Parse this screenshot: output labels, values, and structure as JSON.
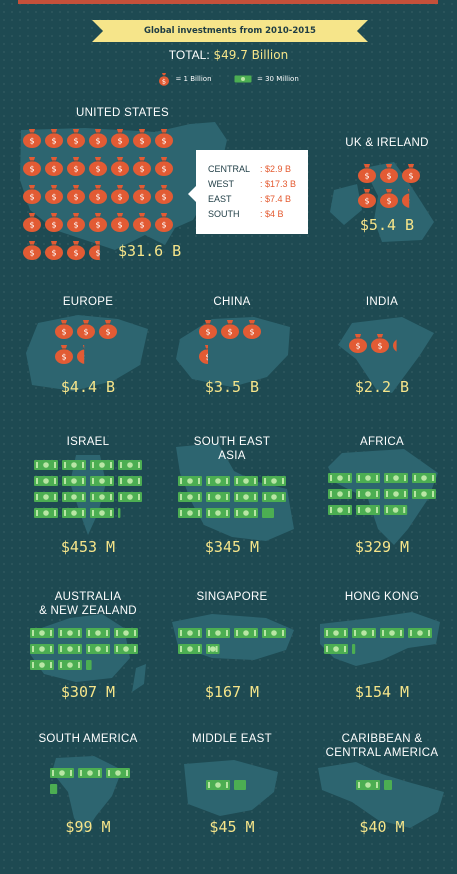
{
  "title": "Global investments from 2010-2015",
  "total": {
    "label": "TOTAL:",
    "value": "$49.7 Billion"
  },
  "legend": {
    "bag_label": "= 1 Billion",
    "bills_label": "= 30 Million"
  },
  "colors": {
    "background": "#1e4a52",
    "map": "#2d6570",
    "bag": "#e25b34",
    "bills": "#4cae52",
    "amount": "#f6e58a",
    "banner": "#f6e58a"
  },
  "us_breakdown": [
    {
      "region": "CENTRAL",
      "amount": ": $2.9 B"
    },
    {
      "region": "WEST",
      "amount": ": $17.3 B"
    },
    {
      "region": "EAST",
      "amount": ": $7.4 B"
    },
    {
      "region": "SOUTH",
      "amount": ": $4 B"
    }
  ],
  "chart_data": {
    "type": "pictogram",
    "unit_large": "1 Billion (money bag)",
    "unit_small": "30 Million (bill stack)",
    "categories": [
      "UNITED STATES",
      "UK & IRELAND",
      "EUROPE",
      "CHINA",
      "INDIA",
      "ISRAEL",
      "SOUTH EAST ASIA",
      "AFRICA",
      "AUSTRALIA & NEW ZEALAND",
      "SINGAPORE",
      "HONG KONG",
      "SOUTH AMERICA",
      "MIDDLE EAST",
      "CARIBBEAN & CENTRAL AMERICA"
    ],
    "values_millions": [
      31600,
      5400,
      4400,
      3500,
      2200,
      453,
      345,
      329,
      307,
      167,
      154,
      99,
      45,
      40
    ],
    "labels": [
      "$31.6 B",
      "$5.4 B",
      "$4.4 B",
      "$3.5 B",
      "$2.2 B",
      "$453 M",
      "$345 M",
      "$329 M",
      "$307 M",
      "$167 M",
      "$154 M",
      "$99 M",
      "$45 M",
      "$40 M"
    ]
  }
}
